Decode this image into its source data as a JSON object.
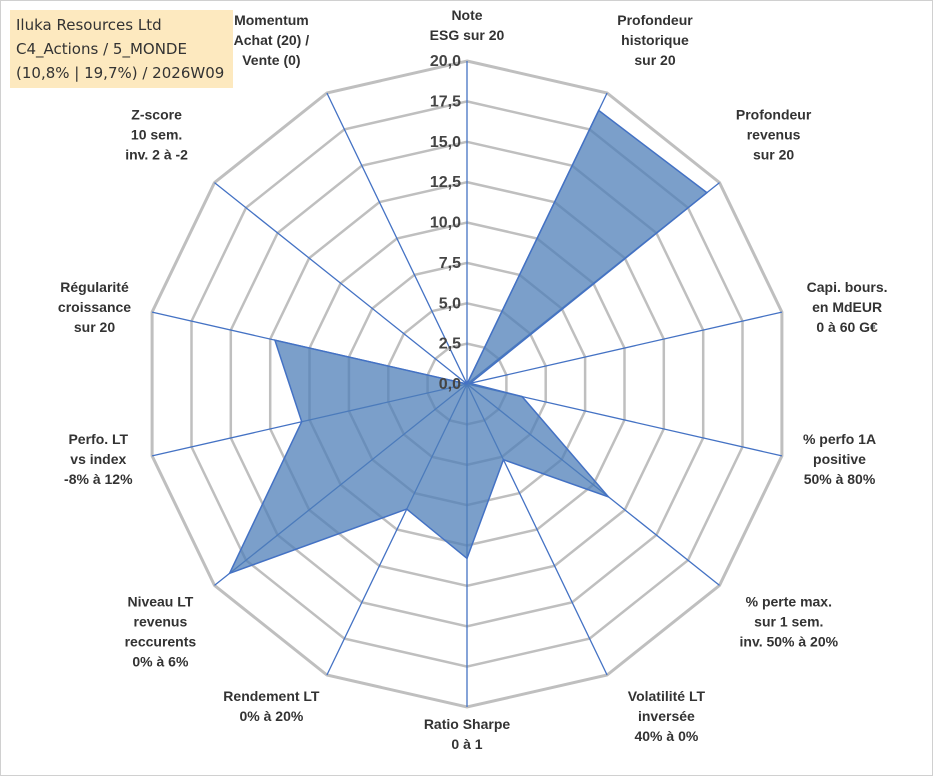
{
  "info": {
    "line1": "Iluka Resources Ltd",
    "line2": "C4_Actions / 5_MONDE",
    "line3": "(10,8% | 19,7%) / 2026W09"
  },
  "colors": {
    "fill": "#4f7fb8",
    "stroke": "#4472c4",
    "grid": "#bfbfbf",
    "spoke": "#4472c4"
  },
  "chart_data": {
    "type": "radar",
    "title": "",
    "rmax": 20,
    "ticks": [
      "0,0",
      "2,5",
      "5,0",
      "7,5",
      "10,0",
      "12,5",
      "15,0",
      "17,5",
      "20,0"
    ],
    "tick_values": [
      0,
      2.5,
      5,
      7.5,
      10,
      12.5,
      15,
      17.5,
      20
    ],
    "axes": [
      {
        "lines": [
          "Note",
          "ESG sur 20"
        ]
      },
      {
        "lines": [
          "Profondeur",
          "historique",
          "sur 20"
        ]
      },
      {
        "lines": [
          "Profondeur",
          "revenus",
          "sur 20"
        ]
      },
      {
        "lines": [
          "Capi. bours.",
          "en MdEUR",
          "0 à 60 G€"
        ]
      },
      {
        "lines": [
          "% perfo 1A",
          "positive",
          "50% à 80%"
        ]
      },
      {
        "lines": [
          "% perte max.",
          "sur 1 sem.",
          "inv. 50% à 20%"
        ]
      },
      {
        "lines": [
          "Volatilité LT",
          "inversée",
          "40% à 0%"
        ]
      },
      {
        "lines": [
          "Ratio Sharpe",
          "0 à 1"
        ]
      },
      {
        "lines": [
          "Rendement LT",
          "0% à 20%"
        ]
      },
      {
        "lines": [
          "Niveau LT",
          "revenus",
          "reccurents",
          "0% à 6%"
        ]
      },
      {
        "lines": [
          "Perfo. LT",
          "vs index",
          "-8% à 12%"
        ]
      },
      {
        "lines": [
          "Régularité",
          "croissance",
          "sur 20"
        ]
      },
      {
        "lines": [
          "Z-score",
          "10 sem.",
          "inv. 2 à -2"
        ]
      },
      {
        "lines": [
          "Momentum",
          "Achat (20) /",
          "Vente (0)"
        ]
      }
    ],
    "values": [
      0,
      18.8,
      19.0,
      0.2,
      3.5,
      11.2,
      5.2,
      10.8,
      8.6,
      18.8,
      10.5,
      12.2,
      0,
      0
    ]
  }
}
